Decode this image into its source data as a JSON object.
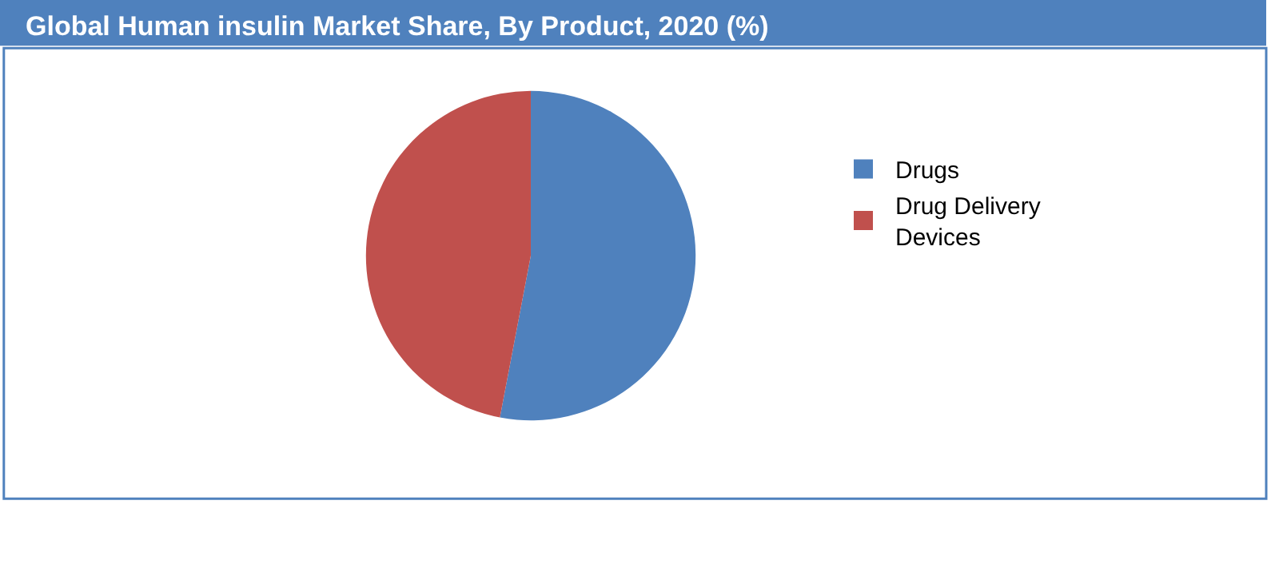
{
  "chart_data": {
    "type": "pie",
    "title": "Global Human insulin Market Share, By Product, 2020 (%)",
    "categories": [
      "Drugs",
      "Drug Delivery Devices"
    ],
    "values": [
      53,
      47
    ],
    "colors": [
      "#4f81bd",
      "#c0504d"
    ],
    "legend": "right"
  }
}
